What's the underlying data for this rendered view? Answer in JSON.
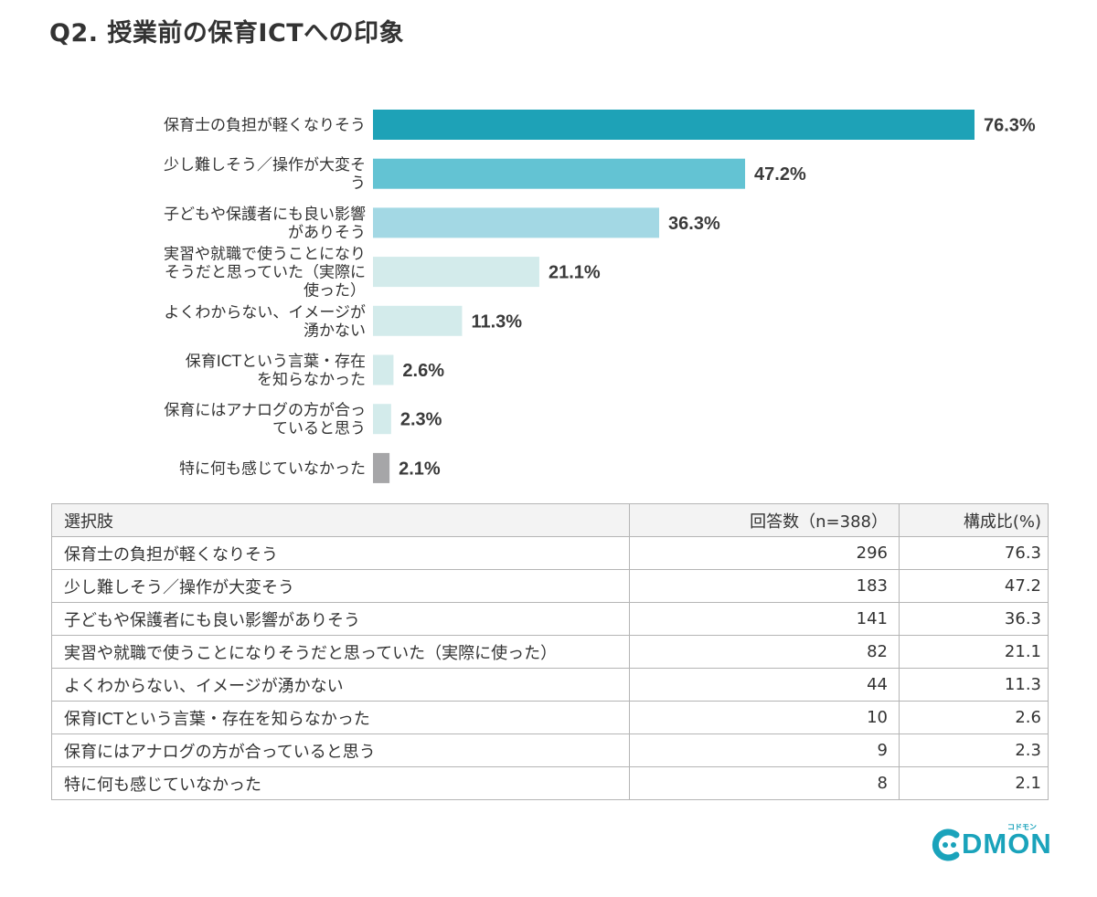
{
  "title": "Q2. 授業前の保育ICTへの印象",
  "chart_data": {
    "type": "bar",
    "orientation": "horizontal",
    "categories": [
      [
        "保育士の負担が軽くなりそう"
      ],
      [
        "少し難しそう／操作が大変そ",
        "う"
      ],
      [
        "子どもや保護者にも良い影響",
        "がありそう"
      ],
      [
        "実習や就職で使うことになり",
        "そうだと思っていた（実際に",
        "使った）"
      ],
      [
        "よくわからない、イメージが",
        "湧かない"
      ],
      [
        "保育ICTという言葉・存在",
        "を知らなかった"
      ],
      [
        "保育にはアナログの方が合っ",
        "ていると思う"
      ],
      [
        "特に何も感じていなかった"
      ]
    ],
    "values": [
      76.3,
      47.2,
      36.3,
      21.1,
      11.3,
      2.6,
      2.3,
      2.1
    ],
    "value_labels": [
      "76.3%",
      "47.2%",
      "36.3%",
      "21.1%",
      "11.3%",
      "2.6%",
      "2.3%",
      "2.1%"
    ],
    "colors": [
      "#1ea2b7",
      "#63c3d3",
      "#a3d8e4",
      "#d3ebeb",
      "#d3ebeb",
      "#d3ebeb",
      "#d3ebeb",
      "#a6a6a8"
    ],
    "xlim": [
      0,
      76.3
    ],
    "grid": false,
    "legend": "none"
  },
  "table": {
    "headers": [
      "選択肢",
      "回答数（n=388）",
      "構成比(%)"
    ],
    "rows": [
      [
        "保育士の負担が軽くなりそう",
        "296",
        "76.3"
      ],
      [
        "少し難しそう／操作が大変そう",
        "183",
        "47.2"
      ],
      [
        "子どもや保護者にも良い影響がありそう",
        "141",
        "36.3"
      ],
      [
        "実習や就職で使うことになりそうだと思っていた（実際に使った）",
        "82",
        "21.1"
      ],
      [
        "よくわからない、イメージが湧かない",
        "44",
        "11.3"
      ],
      [
        "保育ICTという言葉・存在を知らなかった",
        "10",
        "2.6"
      ],
      [
        "保育にはアナログの方が合っていると思う",
        "9",
        "2.3"
      ],
      [
        "特に何も感じていなかった",
        "8",
        "2.1"
      ]
    ]
  },
  "logo": {
    "text": "DMON",
    "tagline": "コドモン",
    "color": "#1aa3bb"
  }
}
